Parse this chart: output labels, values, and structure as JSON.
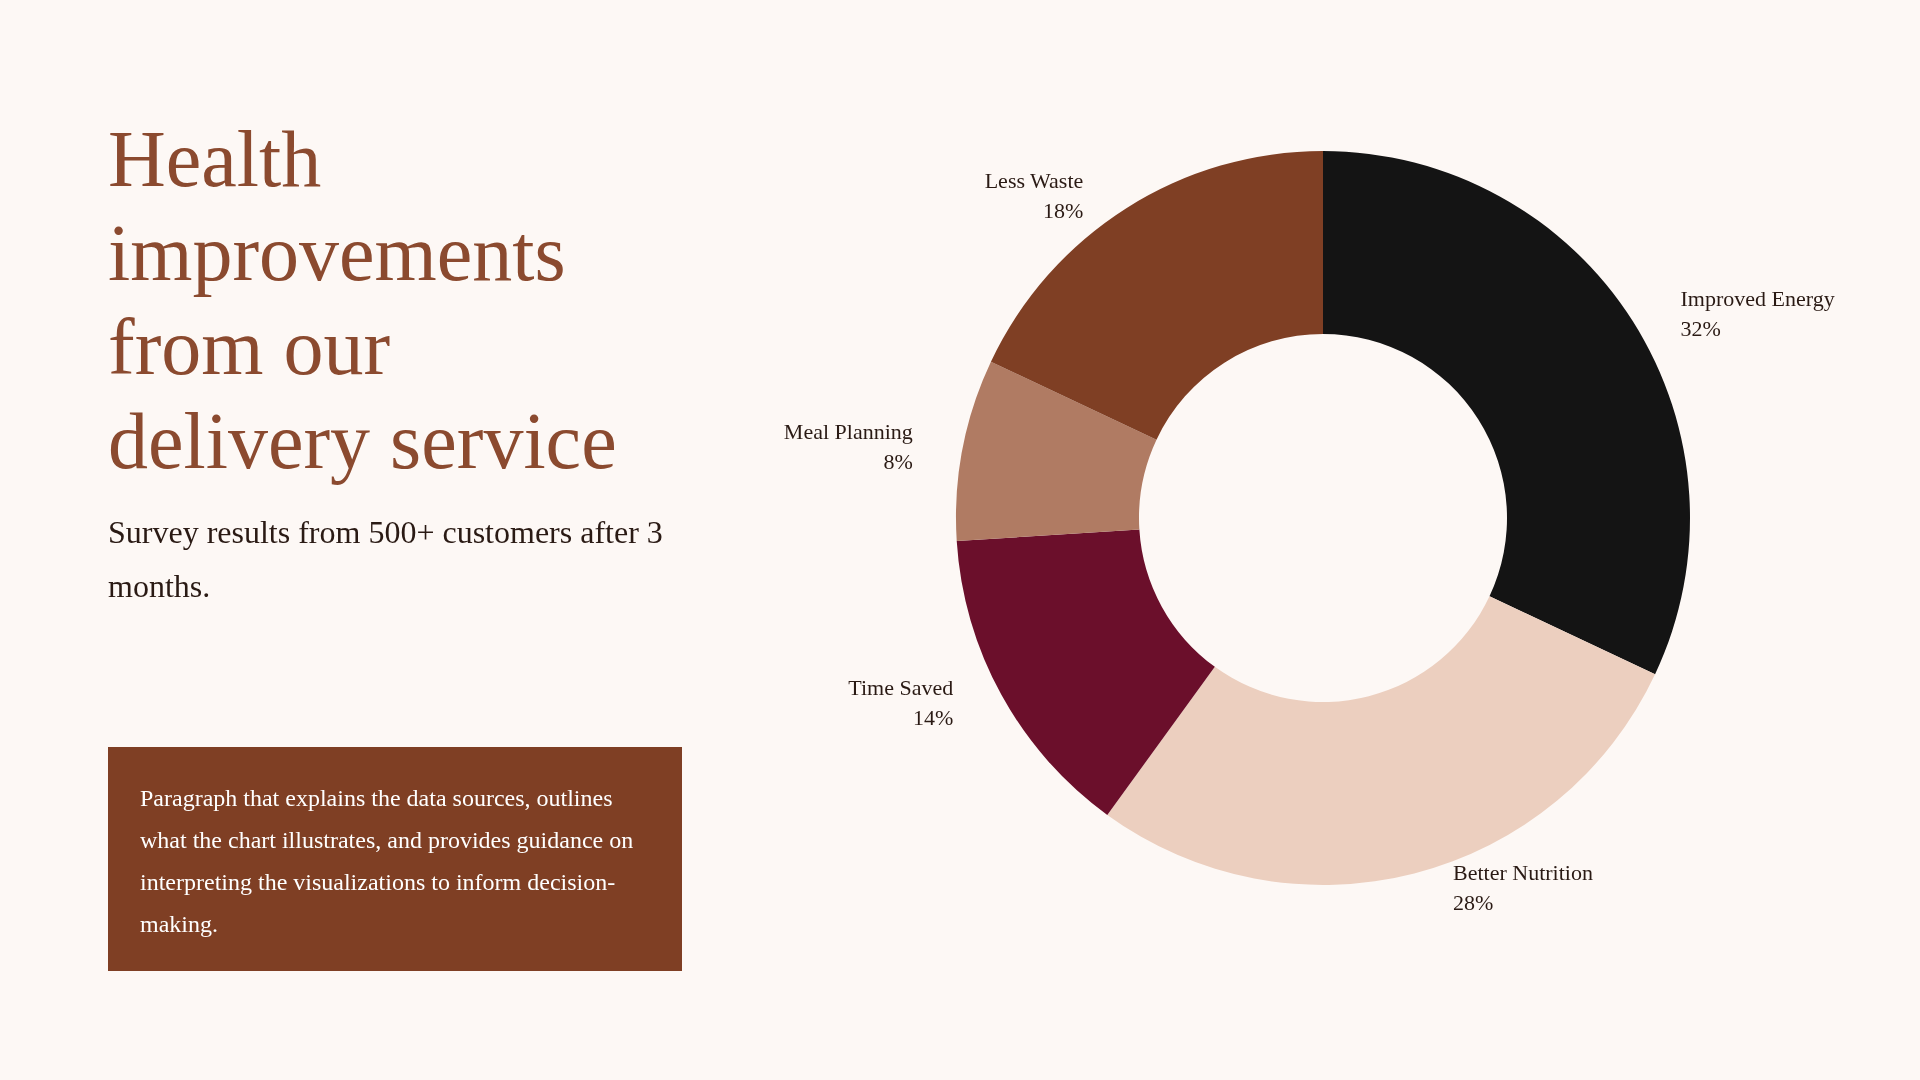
{
  "chart_data": {
    "type": "donut",
    "title": "Health improvements from our delivery service",
    "subtitle": "Survey results from 500+ customers after 3 months.",
    "categories": [
      "Improved Energy",
      "Better Nutrition",
      "Time Saved",
      "Meal Planning",
      "Less Waste"
    ],
    "values": [
      32,
      28,
      14,
      8,
      18
    ],
    "value_labels": [
      "32%",
      "28%",
      "14%",
      "8%",
      "18%"
    ],
    "colors": [
      "#141414",
      "#eccfbf",
      "#6b0f2b",
      "#b07b63",
      "#7f3f24"
    ],
    "annotations": [
      "Paragraph that explains the data sources, outlines what the chart illustrates, and provides guidance on interpreting the visualizations to inform decision-making."
    ]
  }
}
